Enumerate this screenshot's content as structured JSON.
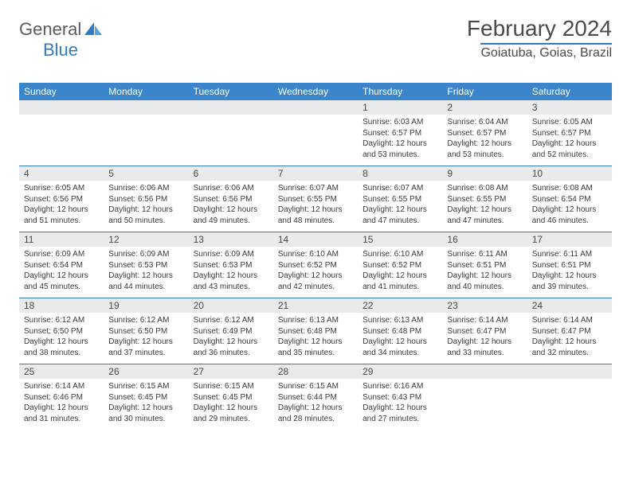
{
  "logo": {
    "text_gray": "General",
    "text_blue": "Blue"
  },
  "title": "February 2024",
  "location": "Goiatuba, Goias, Brazil",
  "colors": {
    "header_bg": "#3b86ca",
    "accent": "#2f7bc4",
    "daynum_bg": "#e9eaeb",
    "text": "#4a4a4a",
    "body_text": "#3a3a3a"
  },
  "day_names": [
    "Sunday",
    "Monday",
    "Tuesday",
    "Wednesday",
    "Thursday",
    "Friday",
    "Saturday"
  ],
  "weeks": [
    [
      {
        "n": "",
        "sr": "",
        "ss": "",
        "dl": ""
      },
      {
        "n": "",
        "sr": "",
        "ss": "",
        "dl": ""
      },
      {
        "n": "",
        "sr": "",
        "ss": "",
        "dl": ""
      },
      {
        "n": "",
        "sr": "",
        "ss": "",
        "dl": ""
      },
      {
        "n": "1",
        "sr": "Sunrise: 6:03 AM",
        "ss": "Sunset: 6:57 PM",
        "dl": "Daylight: 12 hours and 53 minutes."
      },
      {
        "n": "2",
        "sr": "Sunrise: 6:04 AM",
        "ss": "Sunset: 6:57 PM",
        "dl": "Daylight: 12 hours and 53 minutes."
      },
      {
        "n": "3",
        "sr": "Sunrise: 6:05 AM",
        "ss": "Sunset: 6:57 PM",
        "dl": "Daylight: 12 hours and 52 minutes."
      }
    ],
    [
      {
        "n": "4",
        "sr": "Sunrise: 6:05 AM",
        "ss": "Sunset: 6:56 PM",
        "dl": "Daylight: 12 hours and 51 minutes."
      },
      {
        "n": "5",
        "sr": "Sunrise: 6:06 AM",
        "ss": "Sunset: 6:56 PM",
        "dl": "Daylight: 12 hours and 50 minutes."
      },
      {
        "n": "6",
        "sr": "Sunrise: 6:06 AM",
        "ss": "Sunset: 6:56 PM",
        "dl": "Daylight: 12 hours and 49 minutes."
      },
      {
        "n": "7",
        "sr": "Sunrise: 6:07 AM",
        "ss": "Sunset: 6:55 PM",
        "dl": "Daylight: 12 hours and 48 minutes."
      },
      {
        "n": "8",
        "sr": "Sunrise: 6:07 AM",
        "ss": "Sunset: 6:55 PM",
        "dl": "Daylight: 12 hours and 47 minutes."
      },
      {
        "n": "9",
        "sr": "Sunrise: 6:08 AM",
        "ss": "Sunset: 6:55 PM",
        "dl": "Daylight: 12 hours and 47 minutes."
      },
      {
        "n": "10",
        "sr": "Sunrise: 6:08 AM",
        "ss": "Sunset: 6:54 PM",
        "dl": "Daylight: 12 hours and 46 minutes."
      }
    ],
    [
      {
        "n": "11",
        "sr": "Sunrise: 6:09 AM",
        "ss": "Sunset: 6:54 PM",
        "dl": "Daylight: 12 hours and 45 minutes."
      },
      {
        "n": "12",
        "sr": "Sunrise: 6:09 AM",
        "ss": "Sunset: 6:53 PM",
        "dl": "Daylight: 12 hours and 44 minutes."
      },
      {
        "n": "13",
        "sr": "Sunrise: 6:09 AM",
        "ss": "Sunset: 6:53 PM",
        "dl": "Daylight: 12 hours and 43 minutes."
      },
      {
        "n": "14",
        "sr": "Sunrise: 6:10 AM",
        "ss": "Sunset: 6:52 PM",
        "dl": "Daylight: 12 hours and 42 minutes."
      },
      {
        "n": "15",
        "sr": "Sunrise: 6:10 AM",
        "ss": "Sunset: 6:52 PM",
        "dl": "Daylight: 12 hours and 41 minutes."
      },
      {
        "n": "16",
        "sr": "Sunrise: 6:11 AM",
        "ss": "Sunset: 6:51 PM",
        "dl": "Daylight: 12 hours and 40 minutes."
      },
      {
        "n": "17",
        "sr": "Sunrise: 6:11 AM",
        "ss": "Sunset: 6:51 PM",
        "dl": "Daylight: 12 hours and 39 minutes."
      }
    ],
    [
      {
        "n": "18",
        "sr": "Sunrise: 6:12 AM",
        "ss": "Sunset: 6:50 PM",
        "dl": "Daylight: 12 hours and 38 minutes."
      },
      {
        "n": "19",
        "sr": "Sunrise: 6:12 AM",
        "ss": "Sunset: 6:50 PM",
        "dl": "Daylight: 12 hours and 37 minutes."
      },
      {
        "n": "20",
        "sr": "Sunrise: 6:12 AM",
        "ss": "Sunset: 6:49 PM",
        "dl": "Daylight: 12 hours and 36 minutes."
      },
      {
        "n": "21",
        "sr": "Sunrise: 6:13 AM",
        "ss": "Sunset: 6:48 PM",
        "dl": "Daylight: 12 hours and 35 minutes."
      },
      {
        "n": "22",
        "sr": "Sunrise: 6:13 AM",
        "ss": "Sunset: 6:48 PM",
        "dl": "Daylight: 12 hours and 34 minutes."
      },
      {
        "n": "23",
        "sr": "Sunrise: 6:14 AM",
        "ss": "Sunset: 6:47 PM",
        "dl": "Daylight: 12 hours and 33 minutes."
      },
      {
        "n": "24",
        "sr": "Sunrise: 6:14 AM",
        "ss": "Sunset: 6:47 PM",
        "dl": "Daylight: 12 hours and 32 minutes."
      }
    ],
    [
      {
        "n": "25",
        "sr": "Sunrise: 6:14 AM",
        "ss": "Sunset: 6:46 PM",
        "dl": "Daylight: 12 hours and 31 minutes."
      },
      {
        "n": "26",
        "sr": "Sunrise: 6:15 AM",
        "ss": "Sunset: 6:45 PM",
        "dl": "Daylight: 12 hours and 30 minutes."
      },
      {
        "n": "27",
        "sr": "Sunrise: 6:15 AM",
        "ss": "Sunset: 6:45 PM",
        "dl": "Daylight: 12 hours and 29 minutes."
      },
      {
        "n": "28",
        "sr": "Sunrise: 6:15 AM",
        "ss": "Sunset: 6:44 PM",
        "dl": "Daylight: 12 hours and 28 minutes."
      },
      {
        "n": "29",
        "sr": "Sunrise: 6:16 AM",
        "ss": "Sunset: 6:43 PM",
        "dl": "Daylight: 12 hours and 27 minutes."
      },
      {
        "n": "",
        "sr": "",
        "ss": "",
        "dl": ""
      },
      {
        "n": "",
        "sr": "",
        "ss": "",
        "dl": ""
      }
    ]
  ]
}
